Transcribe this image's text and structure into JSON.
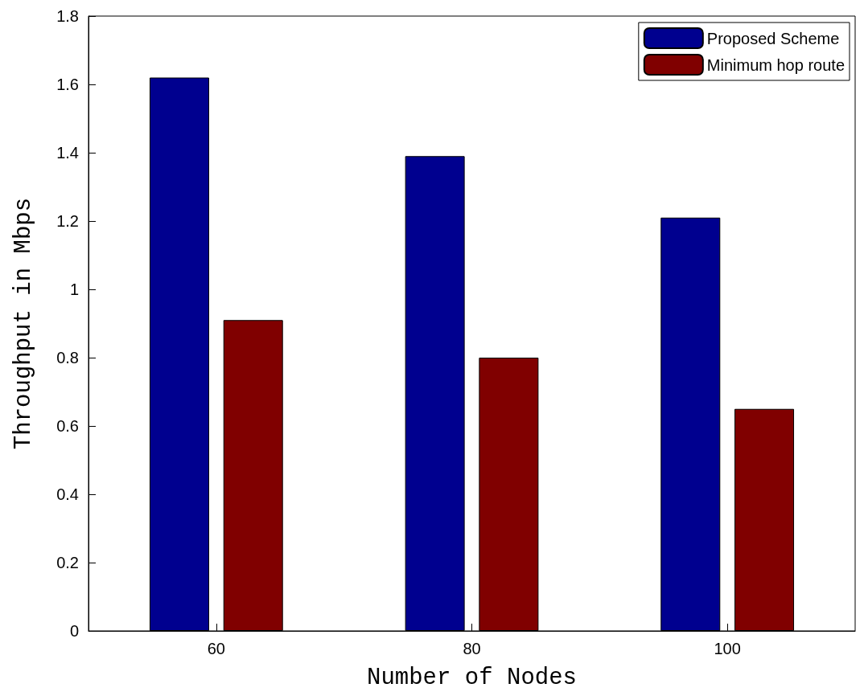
{
  "chart_data": {
    "type": "bar",
    "xlabel": "Number of Nodes",
    "ylabel": "Throughput in Mbps",
    "categories": [
      "60",
      "80",
      "100"
    ],
    "series": [
      {
        "name": "Proposed Scheme",
        "color": "#00008f",
        "values": [
          1.62,
          1.39,
          1.21
        ]
      },
      {
        "name": "Minimum hop route",
        "color": "#800000",
        "values": [
          0.91,
          0.8,
          0.65
        ]
      }
    ],
    "ylim": [
      0,
      1.8
    ],
    "yticks": [
      0,
      0.2,
      0.4,
      0.6,
      0.8,
      1,
      1.2,
      1.4,
      1.6,
      1.8
    ],
    "grid": false,
    "legend": "top right"
  }
}
